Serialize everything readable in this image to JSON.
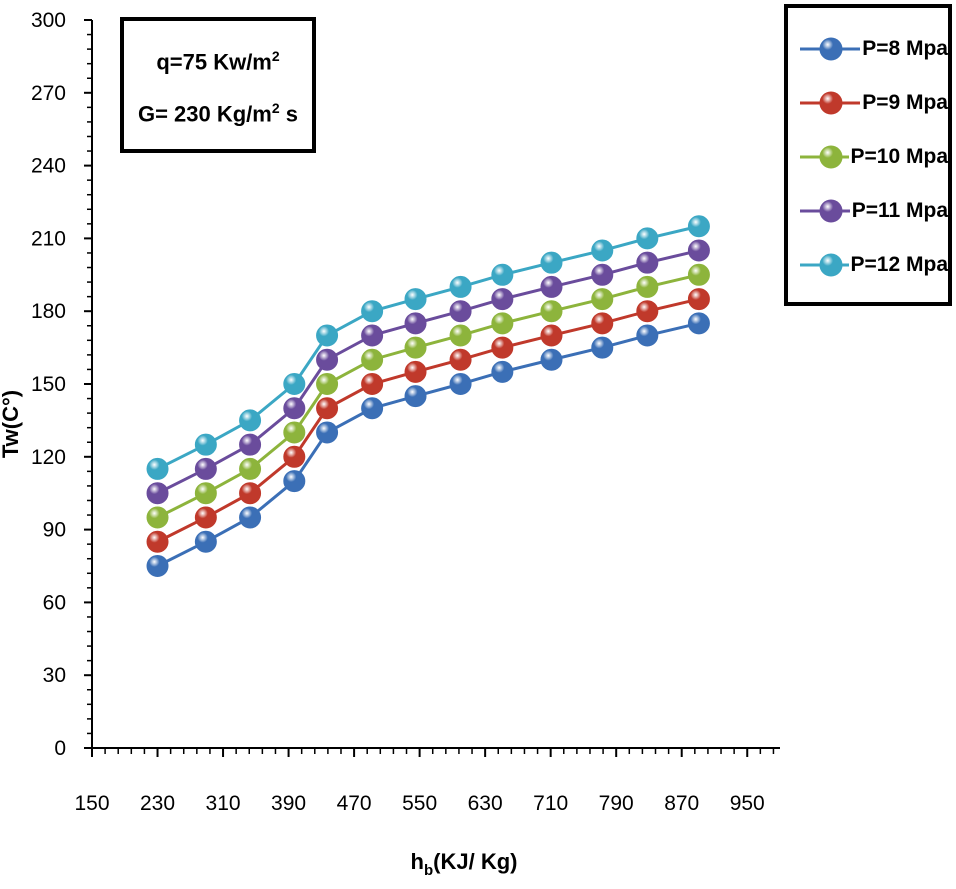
{
  "chart_data": {
    "type": "line",
    "title": "",
    "xlabel_main": "h",
    "xlabel_sub": "b",
    "xlabel_rest": "(KJ/ Kg)",
    "ylabel": "Tw(C°)",
    "xlim": [
      150,
      990
    ],
    "ylim": [
      0,
      300
    ],
    "x_ticks": [
      "150",
      "230",
      "310",
      "390",
      "470",
      "550",
      "630",
      "710",
      "790",
      "870",
      "950"
    ],
    "y_ticks": [
      "0",
      "30",
      "60",
      "90",
      "120",
      "150",
      "180",
      "210",
      "240",
      "270",
      "300"
    ],
    "x": [
      230,
      289,
      343,
      397,
      437,
      492,
      545,
      600,
      651,
      711,
      773,
      828,
      891
    ],
    "series": [
      {
        "name": "P=8 Mpa",
        "color": "#3B6FB6",
        "values": [
          75,
          85,
          95,
          110,
          130,
          140,
          145,
          150,
          155,
          160,
          165,
          170,
          175
        ]
      },
      {
        "name": "P=9 Mpa",
        "color": "#C0392B",
        "values": [
          85,
          95,
          105,
          120,
          140,
          150,
          155,
          160,
          165,
          170,
          175,
          180,
          185
        ]
      },
      {
        "name": "P=10 Mpa",
        "color": "#8DB43C",
        "values": [
          95,
          105,
          115,
          130,
          150,
          160,
          165,
          170,
          175,
          180,
          185,
          190,
          195
        ]
      },
      {
        "name": "P=11 Mpa",
        "color": "#6A4C9C",
        "values": [
          105,
          115,
          125,
          140,
          160,
          170,
          175,
          180,
          185,
          190,
          195,
          200,
          205
        ]
      },
      {
        "name": "P=12 Mpa",
        "color": "#3BA7C4",
        "values": [
          115,
          125,
          135,
          150,
          170,
          180,
          185,
          190,
          195,
          200,
          205,
          210,
          215
        ]
      }
    ],
    "legend_position": "top-right"
  },
  "info_box": {
    "q_text": "q=75 Kw/m",
    "q_sup": "2",
    "g_text": "G= 230 Kg/m",
    "g_sup": "2",
    "g_tail": " s"
  }
}
